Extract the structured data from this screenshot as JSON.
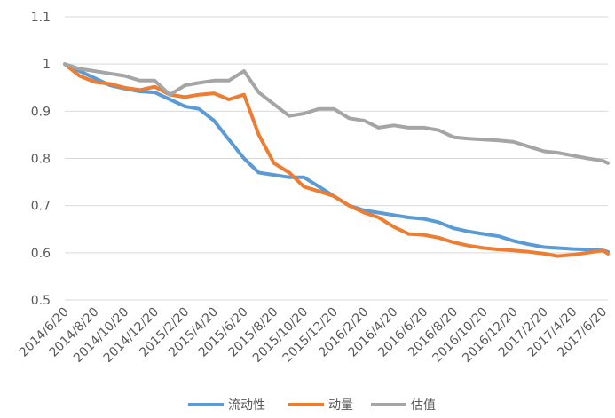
{
  "chart_data": {
    "type": "line",
    "title": "",
    "xlabel": "",
    "ylabel": "",
    "ylim": [
      0.5,
      1.1
    ],
    "yticks": [
      "0.5",
      "0.6",
      "0.7",
      "0.8",
      "0.9",
      "1",
      "1.1"
    ],
    "grid": true,
    "legend_position": "bottom",
    "x_tick_labels": [
      "2014/6/20",
      "2014/8/20",
      "2014/10/20",
      "2014/12/20",
      "2015/2/20",
      "2015/4/20",
      "2015/6/20",
      "2015/8/20",
      "2015/10/20",
      "2015/12/20",
      "2016/2/20",
      "2016/4/20",
      "2016/6/20",
      "2016/8/20",
      "2016/10/20",
      "2016/12/20",
      "2017/2/20",
      "2017/4/20",
      "2017/6/20"
    ],
    "x": [
      "2014/6/20",
      "2014/7/20",
      "2014/8/20",
      "2014/9/20",
      "2014/10/20",
      "2014/11/20",
      "2014/12/20",
      "2015/1/20",
      "2015/2/20",
      "2015/3/20",
      "2015/4/20",
      "2015/5/20",
      "2015/6/20",
      "2015/7/20",
      "2015/8/20",
      "2015/9/20",
      "2015/10/20",
      "2015/11/20",
      "2015/12/20",
      "2016/1/20",
      "2016/2/20",
      "2016/3/20",
      "2016/4/20",
      "2016/5/20",
      "2016/6/20",
      "2016/7/20",
      "2016/8/20",
      "2016/9/20",
      "2016/10/20",
      "2016/11/20",
      "2016/12/20",
      "2017/1/20",
      "2017/2/20",
      "2017/3/20",
      "2017/4/20",
      "2017/5/20",
      "2017/6/20",
      "2017/6/30"
    ],
    "series": [
      {
        "name": "流动性",
        "color": "#5B9BD5",
        "values": [
          1.0,
          0.985,
          0.97,
          0.955,
          0.948,
          0.942,
          0.94,
          0.925,
          0.91,
          0.905,
          0.88,
          0.84,
          0.8,
          0.77,
          0.765,
          0.76,
          0.76,
          0.74,
          0.72,
          0.7,
          0.69,
          0.685,
          0.68,
          0.675,
          0.672,
          0.665,
          0.652,
          0.645,
          0.64,
          0.635,
          0.625,
          0.618,
          0.612,
          0.61,
          0.608,
          0.607,
          0.605,
          0.602
        ]
      },
      {
        "name": "动量",
        "color": "#ED7D31",
        "values": [
          1.0,
          0.975,
          0.962,
          0.958,
          0.95,
          0.945,
          0.952,
          0.935,
          0.93,
          0.935,
          0.938,
          0.925,
          0.935,
          0.85,
          0.79,
          0.77,
          0.74,
          0.73,
          0.72,
          0.7,
          0.685,
          0.675,
          0.655,
          0.64,
          0.638,
          0.632,
          0.622,
          0.615,
          0.61,
          0.607,
          0.605,
          0.602,
          0.598,
          0.593,
          0.596,
          0.6,
          0.605,
          0.598
        ]
      },
      {
        "name": "估值",
        "color": "#A5A5A5",
        "values": [
          1.0,
          0.99,
          0.985,
          0.98,
          0.975,
          0.965,
          0.965,
          0.935,
          0.955,
          0.96,
          0.965,
          0.965,
          0.985,
          0.94,
          0.915,
          0.89,
          0.895,
          0.905,
          0.905,
          0.885,
          0.88,
          0.865,
          0.87,
          0.865,
          0.865,
          0.86,
          0.845,
          0.842,
          0.84,
          0.838,
          0.835,
          0.825,
          0.815,
          0.812,
          0.806,
          0.8,
          0.795,
          0.79
        ]
      }
    ]
  }
}
